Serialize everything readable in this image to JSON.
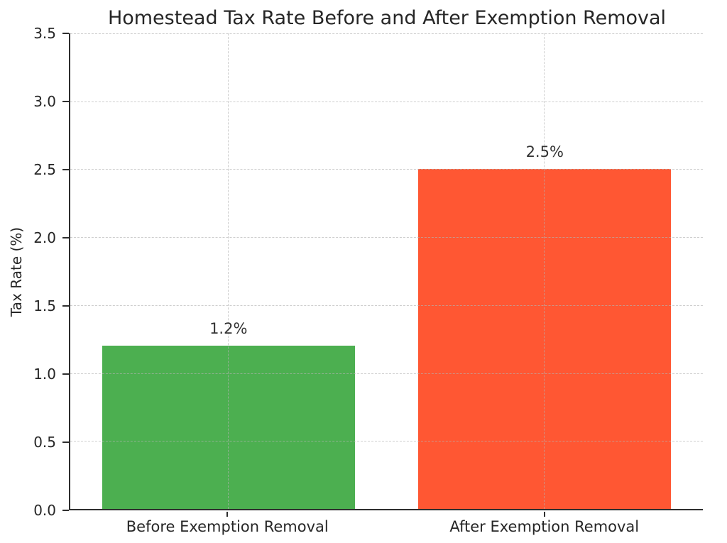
{
  "chart_data": {
    "type": "bar",
    "title": "Homestead Tax Rate Before and After Exemption Removal",
    "xlabel": "",
    "ylabel": "Tax Rate (%)",
    "categories": [
      "Before Exemption Removal",
      "After Exemption Removal"
    ],
    "values": [
      1.2,
      2.5
    ],
    "bar_value_labels": [
      "1.2%",
      "2.5%"
    ],
    "bar_colors": [
      "#4CAF50",
      "#FF5733"
    ],
    "ylim": [
      0,
      3.5
    ],
    "ytick_labels": [
      "0.0",
      "0.5",
      "1.0",
      "1.5",
      "2.0",
      "2.5",
      "3.0",
      "3.5"
    ],
    "grid": true,
    "grid_style": "dashed",
    "grid_color": "#c8c8c8",
    "legend": "none",
    "bar_width_fraction": 0.8
  }
}
